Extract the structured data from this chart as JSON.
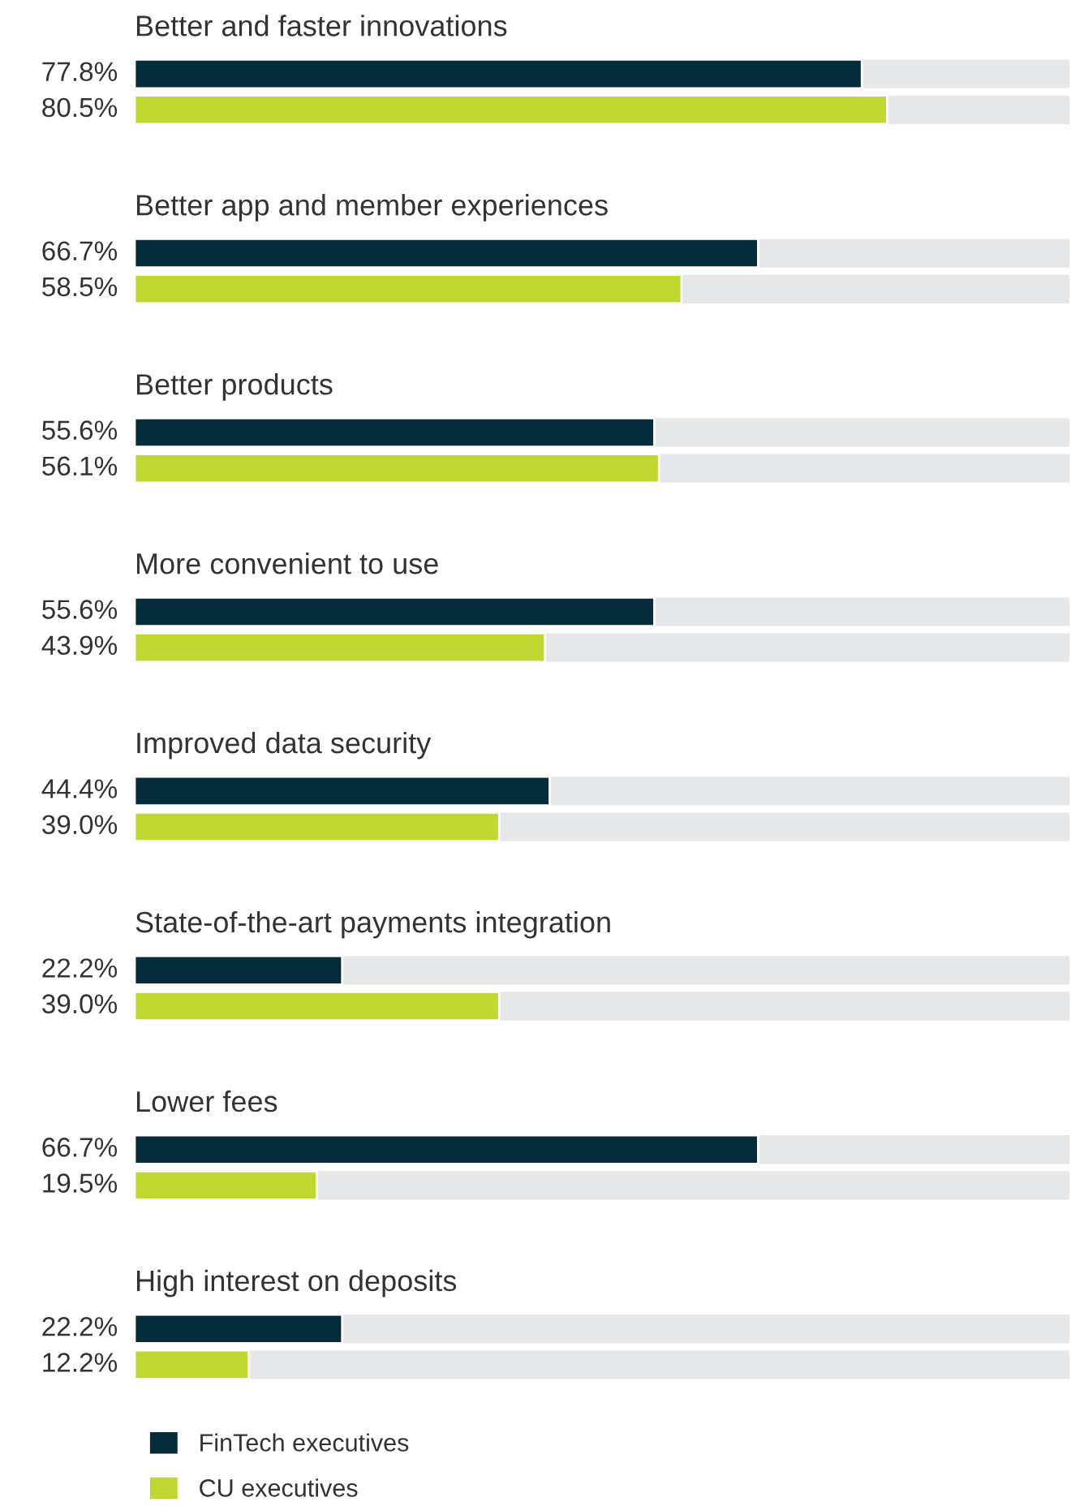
{
  "chart_data": {
    "type": "bar",
    "orientation": "horizontal",
    "xlim": [
      0,
      100
    ],
    "legend": "bottom",
    "categories": [
      "Better and faster innovations",
      "Better app and member experiences",
      "Better products",
      "More convenient to use",
      "Improved data security",
      "State-of-the-art payments integration",
      "Lower fees",
      "High interest on deposits"
    ],
    "series": [
      {
        "name": "FinTech executives",
        "color": "#062c3b",
        "values": [
          77.8,
          66.7,
          55.6,
          55.6,
          44.4,
          22.2,
          66.7,
          22.2
        ],
        "value_labels": [
          "77.8%",
          "66.7%",
          "55.6%",
          "55.6%",
          "44.4%",
          "22.2%",
          "66.7%",
          "22.2%"
        ]
      },
      {
        "name": "CU executives",
        "color": "#bfd730",
        "values": [
          80.5,
          58.5,
          56.1,
          43.9,
          39.0,
          39.0,
          19.5,
          12.2
        ],
        "value_labels": [
          "80.5%",
          "58.5%",
          "56.1%",
          "43.9%",
          "39.0%",
          "39.0%",
          "19.5%",
          "12.2%"
        ]
      }
    ]
  }
}
